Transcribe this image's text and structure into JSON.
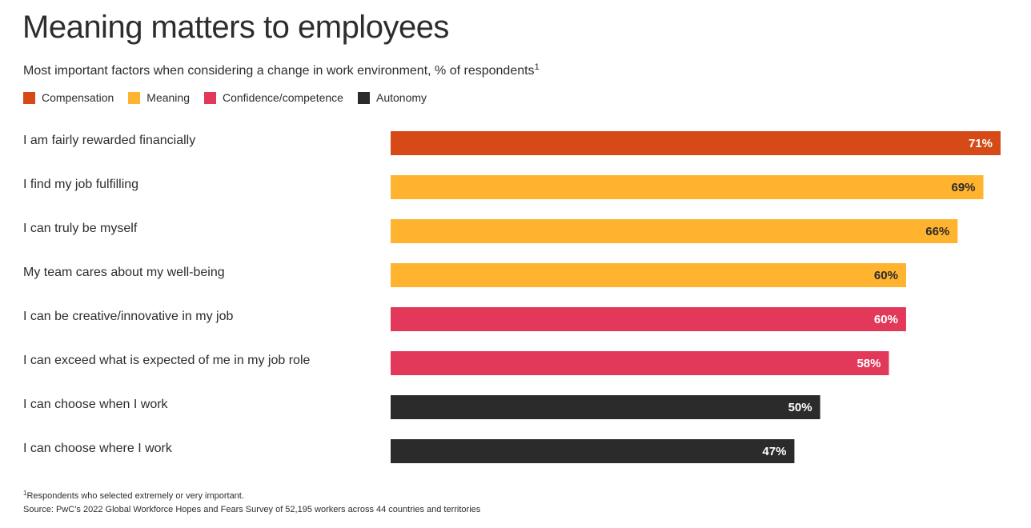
{
  "header": {
    "title": "Meaning matters to employees",
    "subtitle": "Most important factors when considering a change in work environment, % of respondents",
    "subtitle_sup": "1"
  },
  "legend": [
    {
      "label": "Compensation",
      "color": "#d64a18"
    },
    {
      "label": "Meaning",
      "color": "#ffb32e"
    },
    {
      "label": "Confidence/competence",
      "color": "#e2385a"
    },
    {
      "label": "Autonomy",
      "color": "#2b2b2b"
    }
  ],
  "chart_data": {
    "type": "bar",
    "orientation": "horizontal",
    "title": "Meaning matters to employees",
    "categories": [
      "I am fairly rewarded financially",
      "I find my job fulfilling",
      "I can truly be myself",
      "My team cares about my well-being",
      "I can be creative/innovative in my job",
      "I can exceed what is expected of me in my job role",
      "I can choose when I work",
      "I can choose where I work"
    ],
    "values": [
      71,
      69,
      66,
      60,
      60,
      58,
      50,
      47
    ],
    "value_labels": [
      "71%",
      "69%",
      "66%",
      "60%",
      "60%",
      "58%",
      "50%",
      "47%"
    ],
    "groups": [
      "Compensation",
      "Meaning",
      "Meaning",
      "Meaning",
      "Confidence/competence",
      "Confidence/competence",
      "Autonomy",
      "Autonomy"
    ],
    "label_colors": [
      "#ffffff",
      "#2b2b2b",
      "#2b2b2b",
      "#2b2b2b",
      "#ffffff",
      "#ffffff",
      "#ffffff",
      "#ffffff"
    ],
    "xlim": [
      0,
      71
    ],
    "xlabel": "",
    "ylabel": ""
  },
  "footer": {
    "footnote_sup": "1",
    "footnote": "Respondents who selected extremely or very important.",
    "source": "Source: PwC’s 2022 Global Workforce Hopes and Fears Survey of 52,195 workers across 44 countries and territories"
  }
}
